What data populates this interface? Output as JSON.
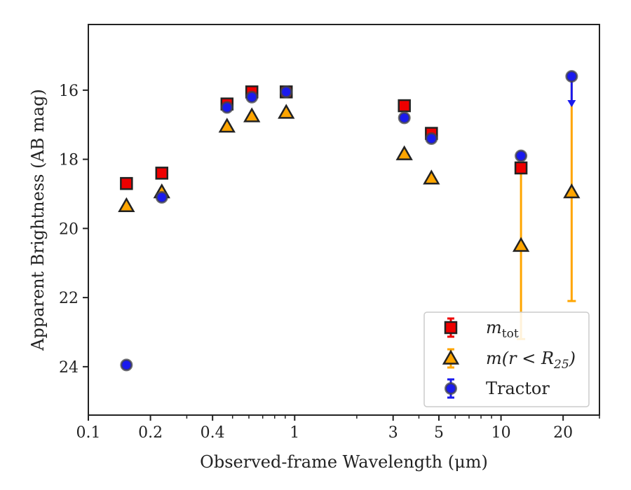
{
  "chart_data": {
    "type": "scatter",
    "xlabel": "Observed-frame Wavelength (μm)",
    "ylabel": "Apparent Brightness (AB mag)",
    "x_scale": "log",
    "y_inverted": true,
    "xlim": [
      0.1,
      30
    ],
    "ylim": [
      25.4,
      14.1
    ],
    "x_ticks": [
      {
        "value": 0.1,
        "label": "0.1"
      },
      {
        "value": 0.2,
        "label": "0.2"
      },
      {
        "value": 0.4,
        "label": "0.4"
      },
      {
        "value": 1,
        "label": "1"
      },
      {
        "value": 3,
        "label": "3"
      },
      {
        "value": 5,
        "label": "5"
      },
      {
        "value": 10,
        "label": "10"
      },
      {
        "value": 20,
        "label": "20"
      }
    ],
    "y_ticks": [
      {
        "value": 16,
        "label": "16"
      },
      {
        "value": 18,
        "label": "18"
      },
      {
        "value": 20,
        "label": "20"
      },
      {
        "value": 22,
        "label": "22"
      },
      {
        "value": 24,
        "label": "24"
      }
    ],
    "legend_position": "bottom-right",
    "series": [
      {
        "name": "m_tot",
        "legend_main": "m",
        "legend_sub": "tot",
        "marker": "square",
        "color": "#ee0000",
        "points": [
          {
            "x": 0.153,
            "y": 18.7
          },
          {
            "x": 0.227,
            "y": 18.4
          },
          {
            "x": 0.47,
            "y": 16.4
          },
          {
            "x": 0.62,
            "y": 16.05
          },
          {
            "x": 0.91,
            "y": 16.05
          },
          {
            "x": 3.4,
            "y": 16.45
          },
          {
            "x": 4.6,
            "y": 17.25
          },
          {
            "x": 12.5,
            "y": 18.25
          }
        ]
      },
      {
        "name": "m(r < R25)",
        "legend_main": "m(r < R",
        "legend_sub": "25",
        "legend_tail": ")",
        "marker": "triangle",
        "color": "#ffa500",
        "points": [
          {
            "x": 0.153,
            "y": 19.35
          },
          {
            "x": 0.227,
            "y": 18.95
          },
          {
            "x": 0.47,
            "y": 17.05
          },
          {
            "x": 0.62,
            "y": 16.75
          },
          {
            "x": 0.91,
            "y": 16.65
          },
          {
            "x": 3.4,
            "y": 17.85
          },
          {
            "x": 4.6,
            "y": 18.55
          },
          {
            "x": 12.5,
            "y": 20.5,
            "err_low": 18.25,
            "err_high": 23.2
          },
          {
            "x": 22.0,
            "y": 18.95,
            "err_low": 15.6,
            "err_high": 22.1
          }
        ]
      },
      {
        "name": "Tractor",
        "legend_main": "Tractor",
        "marker": "circle",
        "color": "#1a1aee",
        "points": [
          {
            "x": 0.153,
            "y": 23.95
          },
          {
            "x": 0.227,
            "y": 19.1
          },
          {
            "x": 0.47,
            "y": 16.5
          },
          {
            "x": 0.62,
            "y": 16.2
          },
          {
            "x": 0.91,
            "y": 16.05
          },
          {
            "x": 3.4,
            "y": 16.8
          },
          {
            "x": 4.6,
            "y": 17.4
          },
          {
            "x": 12.5,
            "y": 17.9
          },
          {
            "x": 22.0,
            "y": 15.6,
            "upper_limit_to": 16.45
          }
        ]
      }
    ]
  }
}
